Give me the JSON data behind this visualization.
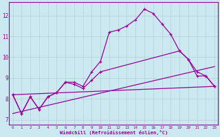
{
  "xlabel": "Windchill (Refroidissement éolien,°C)",
  "x": [
    0,
    1,
    2,
    3,
    4,
    5,
    6,
    7,
    8,
    9,
    10,
    11,
    12,
    13,
    14,
    15,
    16,
    17,
    18,
    19,
    20,
    21,
    22,
    23
  ],
  "line1_x": [
    0,
    1,
    2,
    3,
    4,
    5,
    6,
    7,
    8,
    9,
    10,
    11,
    12,
    13,
    14,
    15,
    16,
    17,
    18,
    19,
    20,
    21,
    22,
    23
  ],
  "line1_y": [
    8.2,
    7.3,
    8.1,
    7.5,
    8.1,
    8.3,
    8.8,
    8.8,
    8.6,
    9.3,
    9.8,
    11.2,
    11.3,
    11.5,
    11.8,
    12.3,
    12.1,
    11.6,
    11.1,
    10.3,
    9.9,
    9.1,
    9.1,
    8.6
  ],
  "line2_x": [
    0,
    1,
    2,
    3,
    4,
    5,
    6,
    7,
    8,
    9,
    10,
    19,
    20,
    21,
    22,
    23
  ],
  "line2_y": [
    8.2,
    7.3,
    8.1,
    7.5,
    8.1,
    8.3,
    8.8,
    8.7,
    8.5,
    8.9,
    9.3,
    10.3,
    9.9,
    9.3,
    9.1,
    8.6
  ],
  "line3_x": [
    0,
    23
  ],
  "line3_y": [
    8.2,
    8.6
  ],
  "line4_x": [
    0,
    23
  ],
  "line4_y": [
    7.3,
    9.55
  ],
  "ylim": [
    6.75,
    12.65
  ],
  "xlim": [
    -0.4,
    23.4
  ],
  "yticks": [
    7,
    8,
    9,
    10,
    11,
    12
  ],
  "xticks": [
    0,
    1,
    2,
    3,
    4,
    5,
    6,
    7,
    8,
    9,
    10,
    11,
    12,
    13,
    14,
    15,
    16,
    17,
    18,
    19,
    20,
    21,
    22,
    23
  ],
  "color": "#990099",
  "bg_color": "#cce8f0",
  "grid_color": "#aacccc"
}
